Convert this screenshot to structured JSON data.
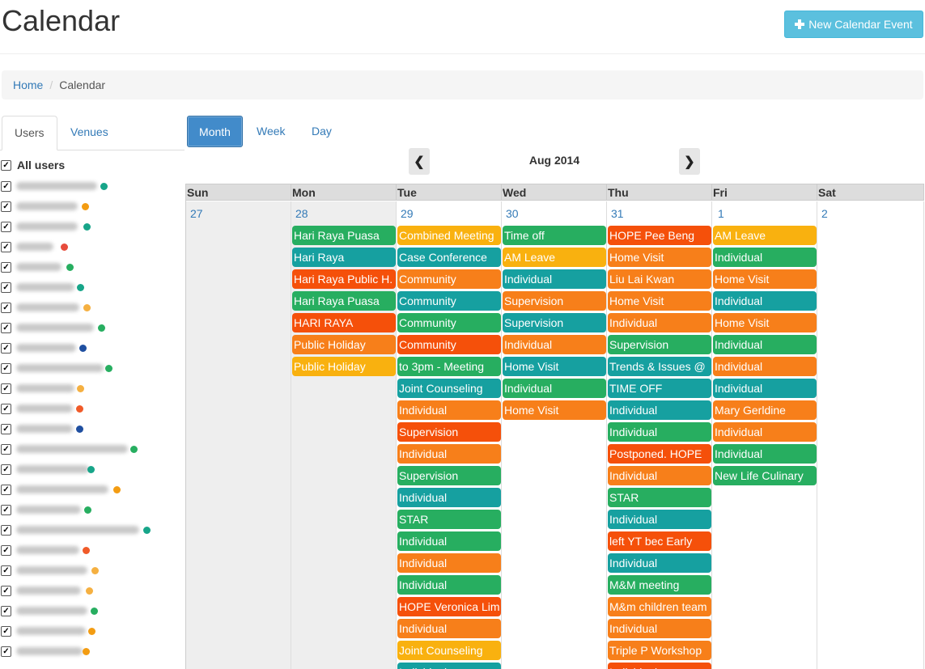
{
  "page": {
    "title": "Calendar",
    "new_event_label": "New Calendar Event"
  },
  "breadcrumb": {
    "home": "Home",
    "current": "Calendar"
  },
  "side_tabs": [
    "Users",
    "Venues"
  ],
  "users": {
    "all_label": "All users",
    "items": [
      {
        "dot": "#17a589"
      },
      {
        "dot": "#f39c12"
      },
      {
        "dot": "#17a589"
      },
      {
        "dot": "#e74c3c"
      },
      {
        "dot": "#27ae60"
      },
      {
        "dot": "#17a589"
      },
      {
        "dot": "#f5b041"
      },
      {
        "dot": "#27ae60"
      },
      {
        "dot": "#1f4fa0"
      },
      {
        "dot": "#27ae60"
      },
      {
        "dot": "#f5b041"
      },
      {
        "dot": "#f05a28"
      },
      {
        "dot": "#1f4fa0"
      },
      {
        "dot": "#27ae60"
      },
      {
        "dot": "#17a589"
      },
      {
        "dot": "#f39c12"
      },
      {
        "dot": "#27ae60"
      },
      {
        "dot": "#17a589"
      },
      {
        "dot": "#f05a28"
      },
      {
        "dot": "#f5b041"
      },
      {
        "dot": "#f5b041"
      },
      {
        "dot": "#27ae60"
      },
      {
        "dot": "#f39c12"
      },
      {
        "dot": "#f39c12"
      }
    ]
  },
  "views": [
    "Month",
    "Week",
    "Day"
  ],
  "month_label": "Aug 2014",
  "nav": {
    "prev_icon": "chevron-left-icon",
    "next_icon": "chevron-right-icon"
  },
  "weekdays": [
    "Sun",
    "Mon",
    "Tue",
    "Wed",
    "Thu",
    "Fri",
    "Sat"
  ],
  "days": [
    {
      "num": "27",
      "other": true,
      "events": []
    },
    {
      "num": "28",
      "other": true,
      "events": [
        {
          "t": "Hari Raya Puasa",
          "c": "#27ae60"
        },
        {
          "t": "Hari Raya",
          "c": "#16a0a0"
        },
        {
          "t": "Hari Raya Public H.",
          "c": "#f5500a"
        },
        {
          "t": "Hari Raya Puasa",
          "c": "#27ae60"
        },
        {
          "t": "HARI RAYA",
          "c": "#f5500a"
        },
        {
          "t": "Public Holiday",
          "c": "#f77f1a"
        },
        {
          "t": "Public Holiday",
          "c": "#f9b10f"
        }
      ]
    },
    {
      "num": "29",
      "other": false,
      "events": [
        {
          "t": "Combined Meeting",
          "c": "#f9b10f"
        },
        {
          "t": "Case Conference",
          "c": "#16a0a0"
        },
        {
          "t": "Community",
          "c": "#f77f1a"
        },
        {
          "t": "Community",
          "c": "#16a0a0"
        },
        {
          "t": "Community",
          "c": "#27ae60"
        },
        {
          "t": "Community",
          "c": "#f5500a"
        },
        {
          "t": "to 3pm - Meeting",
          "c": "#27ae60"
        },
        {
          "t": "Joint Counseling",
          "c": "#16a0a0"
        },
        {
          "t": "Individual",
          "c": "#f77f1a"
        },
        {
          "t": "Supervision",
          "c": "#f5500a"
        },
        {
          "t": "Individual",
          "c": "#f77f1a"
        },
        {
          "t": "Supervision",
          "c": "#27ae60"
        },
        {
          "t": "Individual",
          "c": "#16a0a0"
        },
        {
          "t": "STAR",
          "c": "#27ae60"
        },
        {
          "t": "Individual",
          "c": "#27ae60"
        },
        {
          "t": "Individual",
          "c": "#f77f1a"
        },
        {
          "t": "Individual",
          "c": "#27ae60"
        },
        {
          "t": "HOPE Veronica Lim",
          "c": "#f5500a"
        },
        {
          "t": "Individual",
          "c": "#f77f1a"
        },
        {
          "t": "Joint Counseling",
          "c": "#f9b10f"
        },
        {
          "t": "Individual",
          "c": "#16a0a0"
        }
      ]
    },
    {
      "num": "30",
      "other": false,
      "events": [
        {
          "t": "Time off",
          "c": "#27ae60"
        },
        {
          "t": "AM Leave",
          "c": "#f9b10f"
        },
        {
          "t": "Individual",
          "c": "#16a0a0"
        },
        {
          "t": "Supervision",
          "c": "#f77f1a"
        },
        {
          "t": "Supervision",
          "c": "#16a0a0"
        },
        {
          "t": "Individual",
          "c": "#f77f1a"
        },
        {
          "t": "Home Visit",
          "c": "#16a0a0"
        },
        {
          "t": "Individual",
          "c": "#27ae60"
        },
        {
          "t": "Home Visit",
          "c": "#f77f1a"
        }
      ]
    },
    {
      "num": "31",
      "other": false,
      "events": [
        {
          "t": "HOPE Pee Beng",
          "c": "#f5500a"
        },
        {
          "t": "Home Visit",
          "c": "#f77f1a"
        },
        {
          "t": "Liu Lai Kwan",
          "c": "#f77f1a"
        },
        {
          "t": "Home Visit",
          "c": "#f77f1a"
        },
        {
          "t": "Individual",
          "c": "#f77f1a"
        },
        {
          "t": "Supervision",
          "c": "#27ae60"
        },
        {
          "t": "Trends & Issues @",
          "c": "#16a0a0"
        },
        {
          "t": "TIME OFF",
          "c": "#16a0a0"
        },
        {
          "t": "Individual",
          "c": "#16a0a0"
        },
        {
          "t": "Individual",
          "c": "#27ae60"
        },
        {
          "t": "Postponed. HOPE",
          "c": "#f5500a"
        },
        {
          "t": "Individual",
          "c": "#f77f1a"
        },
        {
          "t": "STAR",
          "c": "#27ae60"
        },
        {
          "t": "Individual",
          "c": "#16a0a0"
        },
        {
          "t": "left YT bec Early",
          "c": "#f5500a"
        },
        {
          "t": "Individual",
          "c": "#16a0a0"
        },
        {
          "t": "M&M meeting",
          "c": "#27ae60"
        },
        {
          "t": "M&m children team",
          "c": "#f77f1a"
        },
        {
          "t": "Individual",
          "c": "#f77f1a"
        },
        {
          "t": "Triple P Workshop",
          "c": "#f77f1a"
        },
        {
          "t": "Individual",
          "c": "#f5500a"
        }
      ]
    },
    {
      "num": "1",
      "other": false,
      "events": [
        {
          "t": "AM Leave",
          "c": "#f9b10f"
        },
        {
          "t": "Individual",
          "c": "#27ae60"
        },
        {
          "t": "Home Visit",
          "c": "#f77f1a"
        },
        {
          "t": "Individual",
          "c": "#16a0a0"
        },
        {
          "t": "Home Visit",
          "c": "#f77f1a"
        },
        {
          "t": "Individual",
          "c": "#27ae60"
        },
        {
          "t": "Individual",
          "c": "#f77f1a"
        },
        {
          "t": "Individual",
          "c": "#16a0a0"
        },
        {
          "t": "Mary Gerldine",
          "c": "#f77f1a"
        },
        {
          "t": "Individual",
          "c": "#f77f1a"
        },
        {
          "t": "Individual",
          "c": "#27ae60"
        },
        {
          "t": "New Life Culinary",
          "c": "#27ae60"
        }
      ]
    },
    {
      "num": "2",
      "other": false,
      "events": []
    }
  ]
}
